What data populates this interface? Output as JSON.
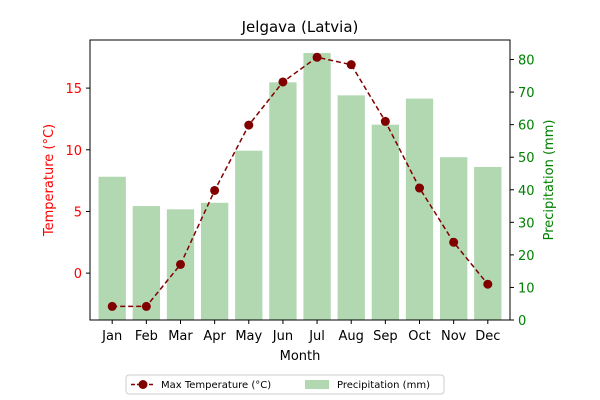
{
  "chart_data": {
    "type": "bar+line",
    "title": "Jelgava (Latvia)",
    "xlabel": "Month",
    "categories": [
      "Jan",
      "Feb",
      "Mar",
      "Apr",
      "May",
      "Jun",
      "Jul",
      "Aug",
      "Sep",
      "Oct",
      "Nov",
      "Dec"
    ],
    "left_axis": {
      "label": "Temperature (°C)",
      "color": "#ff0000",
      "ylim": [
        -3.8,
        18.9
      ],
      "ticks": [
        0,
        5,
        10,
        15
      ]
    },
    "right_axis": {
      "label": "Precipitation (mm)",
      "color": "#008000",
      "ylim": [
        0,
        86
      ],
      "ticks": [
        0,
        10,
        20,
        30,
        40,
        50,
        60,
        70,
        80
      ]
    },
    "series": [
      {
        "name": "Max Temperature (°C)",
        "kind": "line",
        "axis": "left",
        "color": "#800000",
        "values": [
          -2.7,
          -2.7,
          0.7,
          6.7,
          12.0,
          15.5,
          17.5,
          16.9,
          12.3,
          6.9,
          2.5,
          -0.9
        ]
      },
      {
        "name": "Precipitation (mm)",
        "kind": "bar",
        "axis": "right",
        "color": "#b2d8b2",
        "values": [
          44,
          35,
          34,
          36,
          52,
          73,
          82,
          69,
          60,
          68,
          50,
          47
        ]
      }
    ],
    "legend": {
      "placement": "bottom-center"
    },
    "grid": false
  }
}
